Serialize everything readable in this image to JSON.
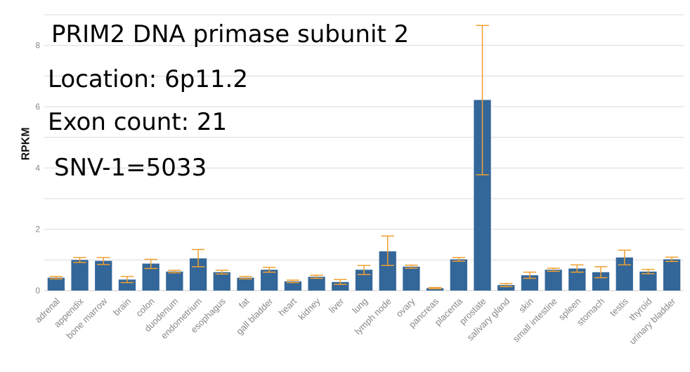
{
  "annotations": {
    "title": "PRIM2 DNA primase subunit 2",
    "location": "Location: 6p11.2",
    "exon_count": "Exon count: 21",
    "snv": "SNV-1=5033"
  },
  "colors": {
    "bar": "#336699",
    "error_bar": "#f0a030",
    "grid": "#d9d9d9",
    "tick_text": "#888888"
  },
  "chart_data": {
    "type": "bar",
    "ylabel": "RPKM",
    "xlabel": "",
    "ylim": [
      0,
      9
    ],
    "yticks": [
      0,
      2,
      4,
      6,
      8
    ],
    "grid": true,
    "categories": [
      "adrenal",
      "appendix",
      "bone marrow",
      "brain",
      "colon",
      "duodenum",
      "endometrium",
      "esophagus",
      "fat",
      "gall bladder",
      "heart",
      "kidney",
      "liver",
      "lung",
      "lymph node",
      "ovary",
      "pancreas",
      "placenta",
      "prostate",
      "salivary gland",
      "skin",
      "small intestine",
      "spleen",
      "stomach",
      "testis",
      "thyroid",
      "urinary bladder"
    ],
    "values": [
      0.42,
      1.0,
      0.97,
      0.36,
      0.88,
      0.62,
      1.05,
      0.6,
      0.42,
      0.68,
      0.3,
      0.45,
      0.28,
      0.68,
      1.28,
      0.78,
      0.08,
      1.02,
      6.22,
      0.18,
      0.5,
      0.68,
      0.72,
      0.6,
      1.08,
      0.62,
      1.02
    ],
    "error_low": [
      0.38,
      0.92,
      0.85,
      0.26,
      0.72,
      0.58,
      0.78,
      0.54,
      0.38,
      0.6,
      0.26,
      0.4,
      0.2,
      0.52,
      0.82,
      0.73,
      0.06,
      0.96,
      3.78,
      0.13,
      0.4,
      0.63,
      0.6,
      0.42,
      0.84,
      0.55,
      0.95
    ],
    "error_high": [
      0.46,
      1.08,
      1.08,
      0.46,
      1.02,
      0.66,
      1.34,
      0.66,
      0.46,
      0.76,
      0.34,
      0.5,
      0.36,
      0.82,
      1.78,
      0.83,
      0.1,
      1.08,
      8.65,
      0.23,
      0.6,
      0.73,
      0.84,
      0.78,
      1.32,
      0.69,
      1.09
    ]
  }
}
